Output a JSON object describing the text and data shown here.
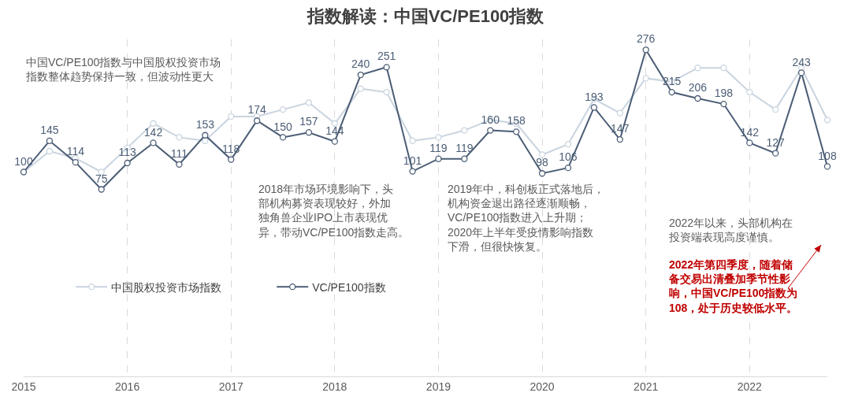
{
  "chart_data": {
    "type": "line",
    "title": "指数解读：中国VC/PE100指数",
    "x": [
      2015,
      2015.25,
      2015.5,
      2015.75,
      2016,
      2016.25,
      2016.5,
      2016.75,
      2017,
      2017.25,
      2017.5,
      2017.75,
      2018,
      2018.25,
      2018.5,
      2018.75,
      2019,
      2019.25,
      2019.5,
      2019.75,
      2020,
      2020.25,
      2020.5,
      2020.75,
      2021,
      2021.25,
      2021.5,
      2021.75,
      2022,
      2022.25,
      2022.5,
      2022.75
    ],
    "xlim": [
      2015,
      2022.75
    ],
    "xticks": [
      2015,
      2016,
      2017,
      2018,
      2019,
      2020,
      2021,
      2022
    ],
    "series": [
      {
        "name": "中国股权投资市场指数",
        "color": "#c9d4df",
        "values": [
          100,
          130,
          120,
          100,
          135,
          170,
          150,
          145,
          180,
          180,
          190,
          200,
          170,
          220,
          215,
          145,
          150,
          160,
          175,
          170,
          125,
          140,
          205,
          185,
          235,
          230,
          250,
          250,
          215,
          190,
          250,
          175
        ]
      },
      {
        "name": "VC/PE100指数",
        "color": "#4b5d75",
        "values": [
          100,
          145,
          114,
          75,
          113,
          142,
          111,
          153,
          118,
          174,
          150,
          157,
          144,
          240,
          251,
          101,
          119,
          119,
          160,
          158,
          98,
          106,
          193,
          147,
          276,
          215,
          206,
          198,
          142,
          127,
          243,
          108
        ],
        "value_labels": [
          "100",
          "145",
          "114",
          "75",
          "113",
          "142",
          "111",
          "153",
          "118",
          "174",
          "150",
          "157",
          "144",
          "240",
          "251",
          "101",
          "119",
          "119",
          "160",
          "158",
          "98",
          "106",
          "193",
          "147",
          "276",
          "215",
          "206",
          "198",
          "142",
          "127",
          "243",
          "108"
        ]
      }
    ],
    "annotations": [
      "中国VC/PE100指数与中国股权投资市场指数整体趋势保持一致，但波动性更大",
      "2018年市场环境影响下，头部机构募资表现较好，外加独角兽企业IPO上市表现优异，带动VC/PE100指数走高。",
      "2019年中，科创板正式落地后，机构资金退出路径逐渐顺畅，VC/PE100指数进入上升期；2020年上半年受疫情影响指数下滑，但很快恢复。",
      "2022年以来，头部机构在投资端表现高度谨慎。",
      "2022年第四季度，随着储备交易出清叠加季节性影响，中国VC/PE100指数为108，处于历史较低水平。"
    ],
    "grid": "x",
    "legend": "left",
    "marker": "circle",
    "line_style": "solid"
  }
}
